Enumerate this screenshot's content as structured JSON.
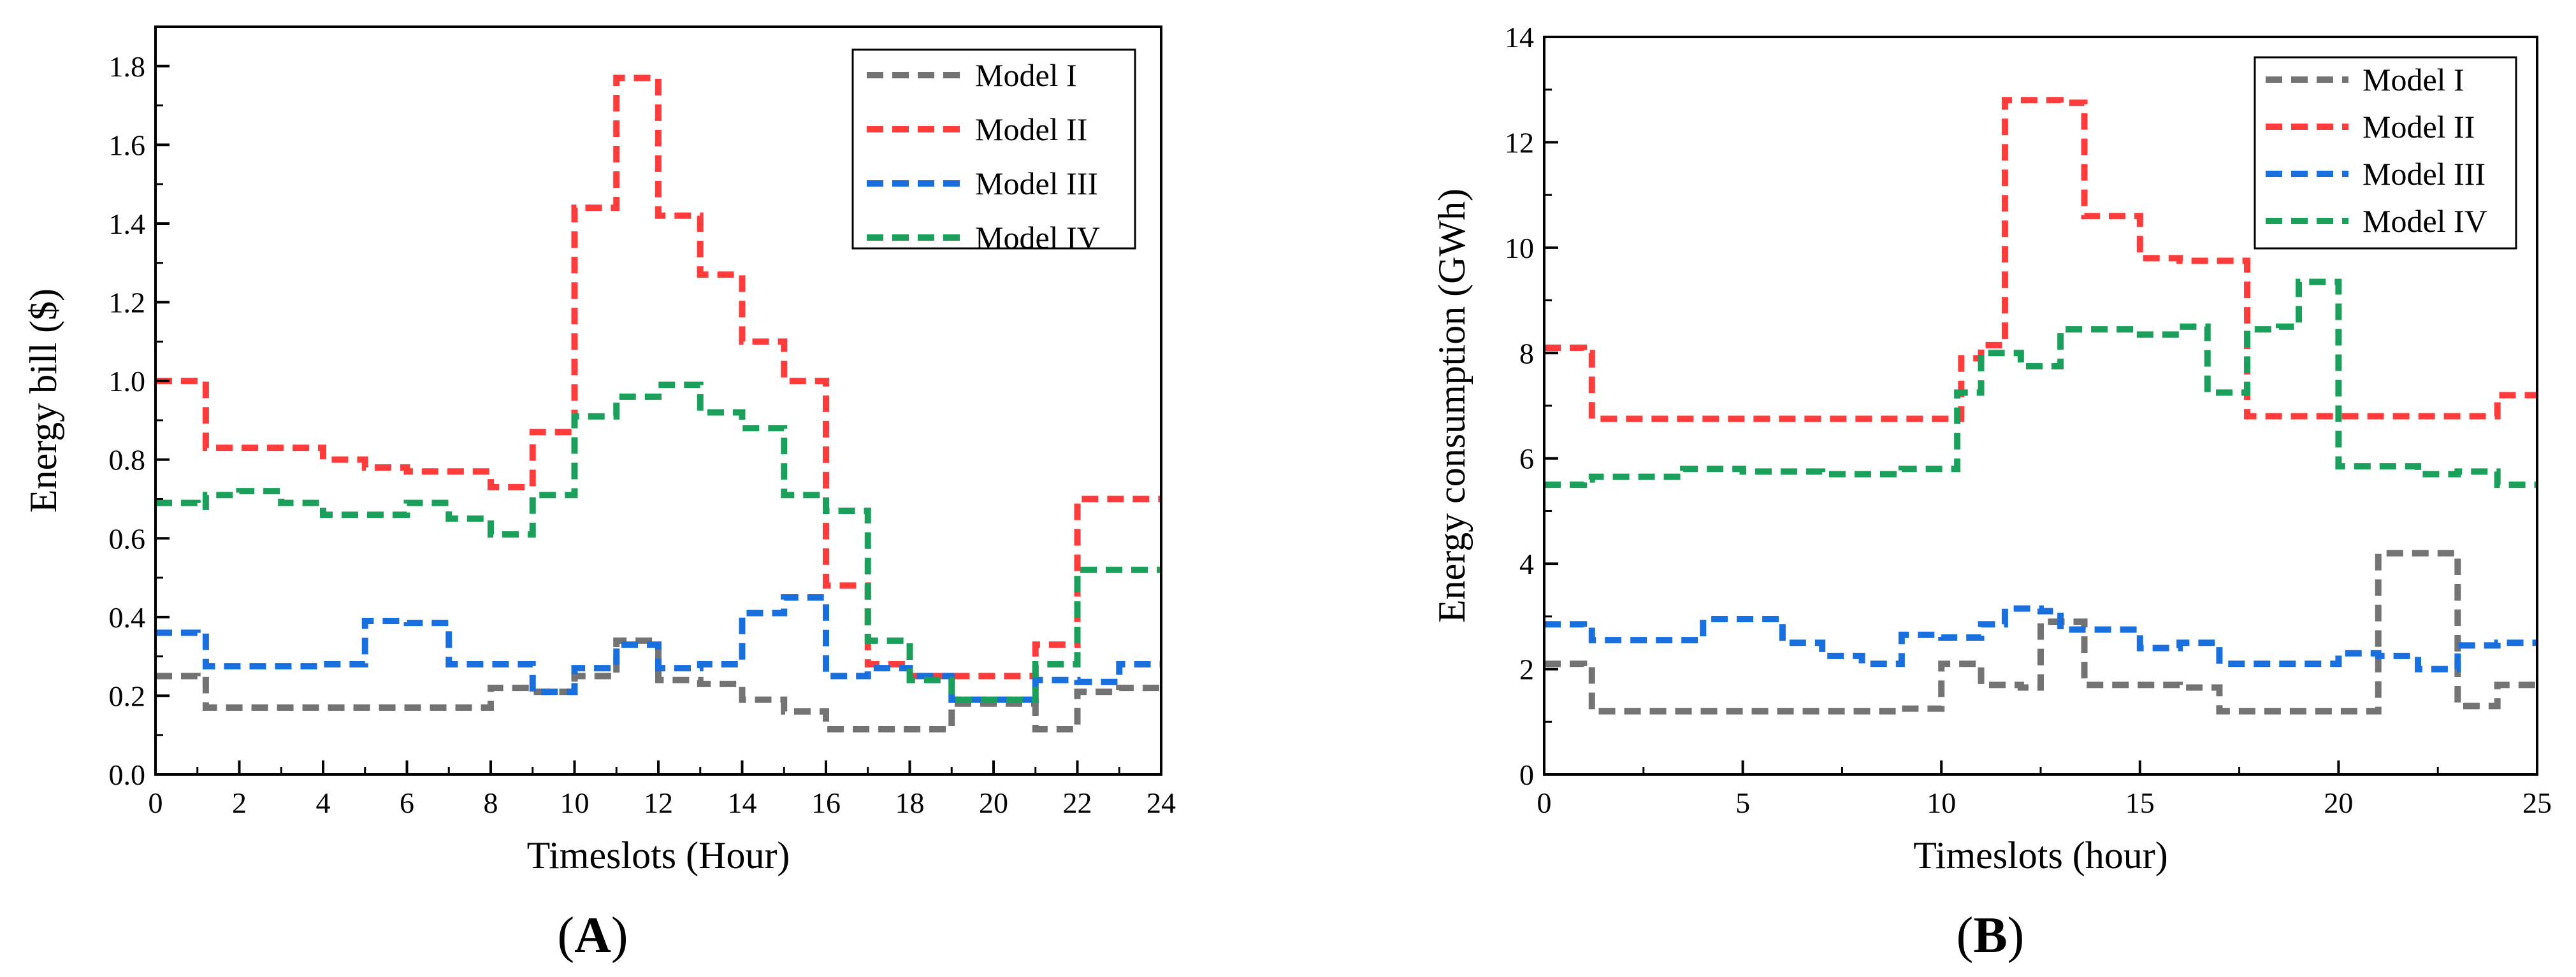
{
  "chart_data": [
    {
      "type": "line",
      "step": true,
      "panel_label": "A",
      "xlabel": "Timeslots (Hour)",
      "ylabel": "Energy bill ($)",
      "xlim": [
        0,
        24
      ],
      "ylim": [
        0,
        1.9
      ],
      "xticks": [
        0,
        2,
        4,
        6,
        8,
        10,
        12,
        14,
        16,
        18,
        20,
        22,
        24
      ],
      "yticks": [
        "0.0",
        "0.2",
        "0.4",
        "0.6",
        "0.8",
        "1.0",
        "1.2",
        "1.4",
        "1.6",
        "1.8"
      ],
      "legend_position": "top-right",
      "series": [
        {
          "name": "Model I",
          "color": "#737373",
          "x": [
            0,
            1,
            1.2,
            2,
            3,
            4,
            5,
            6,
            7,
            8,
            9,
            10,
            11,
            12,
            13,
            14,
            15,
            16,
            17,
            18,
            19,
            20,
            21,
            22,
            23,
            24
          ],
          "values": [
            0.25,
            0.24,
            0.17,
            0.17,
            0.17,
            0.17,
            0.17,
            0.17,
            0.17,
            0.22,
            0.21,
            0.25,
            0.34,
            0.24,
            0.23,
            0.19,
            0.16,
            0.115,
            0.115,
            0.115,
            0.18,
            0.18,
            0.115,
            0.21,
            0.22,
            0.22
          ]
        },
        {
          "name": "Model II",
          "color": "#ff3b3b",
          "x": [
            0,
            1.2,
            2,
            3,
            4,
            5,
            6,
            7,
            8,
            9,
            10,
            11,
            12,
            13,
            14,
            15,
            16,
            17,
            18,
            19,
            20,
            21,
            22,
            23,
            24
          ],
          "values": [
            1.0,
            0.83,
            0.83,
            0.83,
            0.8,
            0.78,
            0.77,
            0.77,
            0.73,
            0.87,
            1.44,
            1.77,
            1.42,
            1.27,
            1.1,
            1.0,
            0.48,
            0.28,
            0.25,
            0.25,
            0.25,
            0.33,
            0.7,
            0.7,
            0.7
          ]
        },
        {
          "name": "Model III",
          "color": "#1a6fdf",
          "x": [
            0,
            1,
            1.2,
            2,
            3,
            4,
            5,
            6,
            7,
            8,
            9,
            10,
            11,
            12,
            13,
            14,
            15,
            16,
            17,
            18,
            19,
            20,
            21,
            22,
            23,
            24
          ],
          "values": [
            0.36,
            0.35,
            0.275,
            0.275,
            0.275,
            0.28,
            0.39,
            0.385,
            0.28,
            0.28,
            0.21,
            0.27,
            0.33,
            0.27,
            0.28,
            0.41,
            0.45,
            0.25,
            0.27,
            0.25,
            0.19,
            0.19,
            0.24,
            0.235,
            0.28,
            0.28
          ]
        },
        {
          "name": "Model IV",
          "color": "#1aa05a",
          "x": [
            0,
            1,
            1.2,
            2,
            3,
            4,
            5,
            6,
            7,
            8,
            9,
            10,
            11,
            12,
            13,
            14,
            15,
            16,
            17,
            18,
            19,
            20,
            21,
            22,
            23,
            24
          ],
          "values": [
            0.69,
            0.68,
            0.71,
            0.72,
            0.69,
            0.66,
            0.66,
            0.69,
            0.65,
            0.61,
            0.71,
            0.91,
            0.96,
            0.99,
            0.92,
            0.88,
            0.71,
            0.67,
            0.34,
            0.24,
            0.19,
            0.19,
            0.28,
            0.52,
            0.52,
            0.52
          ]
        }
      ]
    },
    {
      "type": "line",
      "step": true,
      "panel_label": "B",
      "xlabel": "Timeslots (hour)",
      "ylabel": "Energy consumption (GWh)",
      "xlim": [
        0,
        25
      ],
      "ylim": [
        0,
        14
      ],
      "xticks": [
        0,
        5,
        10,
        15,
        20,
        25
      ],
      "yticks": [
        0,
        2,
        4,
        6,
        8,
        10,
        12,
        14
      ],
      "legend_position": "top-right",
      "series": [
        {
          "name": "Model I",
          "color": "#737373",
          "x": [
            0,
            1,
            1.2,
            3,
            5,
            7,
            9,
            10,
            11,
            12,
            12.5,
            13,
            13.6,
            15,
            16,
            17,
            18,
            19,
            20,
            21,
            22,
            23,
            23.5,
            24,
            25
          ],
          "values": [
            2.1,
            2.05,
            1.2,
            1.2,
            1.2,
            1.2,
            1.25,
            2.1,
            1.7,
            1.65,
            2.9,
            2.9,
            1.7,
            1.7,
            1.65,
            1.2,
            1.2,
            1.2,
            1.2,
            4.2,
            4.2,
            1.3,
            1.3,
            1.7,
            1.7
          ]
        },
        {
          "name": "Model II",
          "color": "#ff3b3b",
          "x": [
            0,
            1,
            1.2,
            3,
            5,
            7,
            9,
            10.5,
            11,
            11.6,
            13,
            13.6,
            14.5,
            15,
            16,
            17,
            17.7,
            19,
            20,
            21,
            22,
            23,
            24,
            25
          ],
          "values": [
            8.1,
            8.0,
            6.75,
            6.75,
            6.75,
            6.75,
            6.75,
            7.9,
            8.15,
            12.8,
            12.75,
            10.6,
            10.6,
            9.8,
            9.75,
            9.75,
            6.8,
            6.8,
            6.8,
            6.8,
            6.8,
            6.8,
            7.2,
            7.2
          ]
        },
        {
          "name": "Model III",
          "color": "#1a6fdf",
          "x": [
            0,
            1,
            1.2,
            3,
            4,
            5,
            6,
            7,
            8,
            9,
            10,
            11,
            11.6,
            12.5,
            13,
            14,
            15,
            16,
            17,
            18,
            19,
            20,
            21,
            22,
            23,
            24,
            25
          ],
          "values": [
            2.85,
            2.8,
            2.55,
            2.55,
            2.95,
            2.95,
            2.5,
            2.25,
            2.1,
            2.65,
            2.6,
            2.85,
            3.15,
            3.1,
            2.75,
            2.75,
            2.4,
            2.5,
            2.1,
            2.1,
            2.1,
            2.3,
            2.25,
            2.0,
            2.45,
            2.5,
            2.5
          ]
        },
        {
          "name": "Model IV",
          "color": "#1aa05a",
          "x": [
            0,
            1,
            1.2,
            3,
            3.5,
            5,
            7,
            9,
            10.4,
            11,
            12,
            13,
            14,
            15,
            16,
            16.7,
            17.7,
            18.5,
            19,
            20,
            21,
            22,
            23,
            24,
            25
          ],
          "values": [
            5.5,
            5.6,
            5.65,
            5.65,
            5.8,
            5.75,
            5.7,
            5.8,
            7.25,
            8.0,
            7.75,
            8.45,
            8.45,
            8.35,
            8.5,
            7.25,
            8.45,
            8.5,
            9.35,
            5.85,
            5.85,
            5.7,
            5.75,
            5.5,
            5.5
          ]
        }
      ]
    }
  ]
}
